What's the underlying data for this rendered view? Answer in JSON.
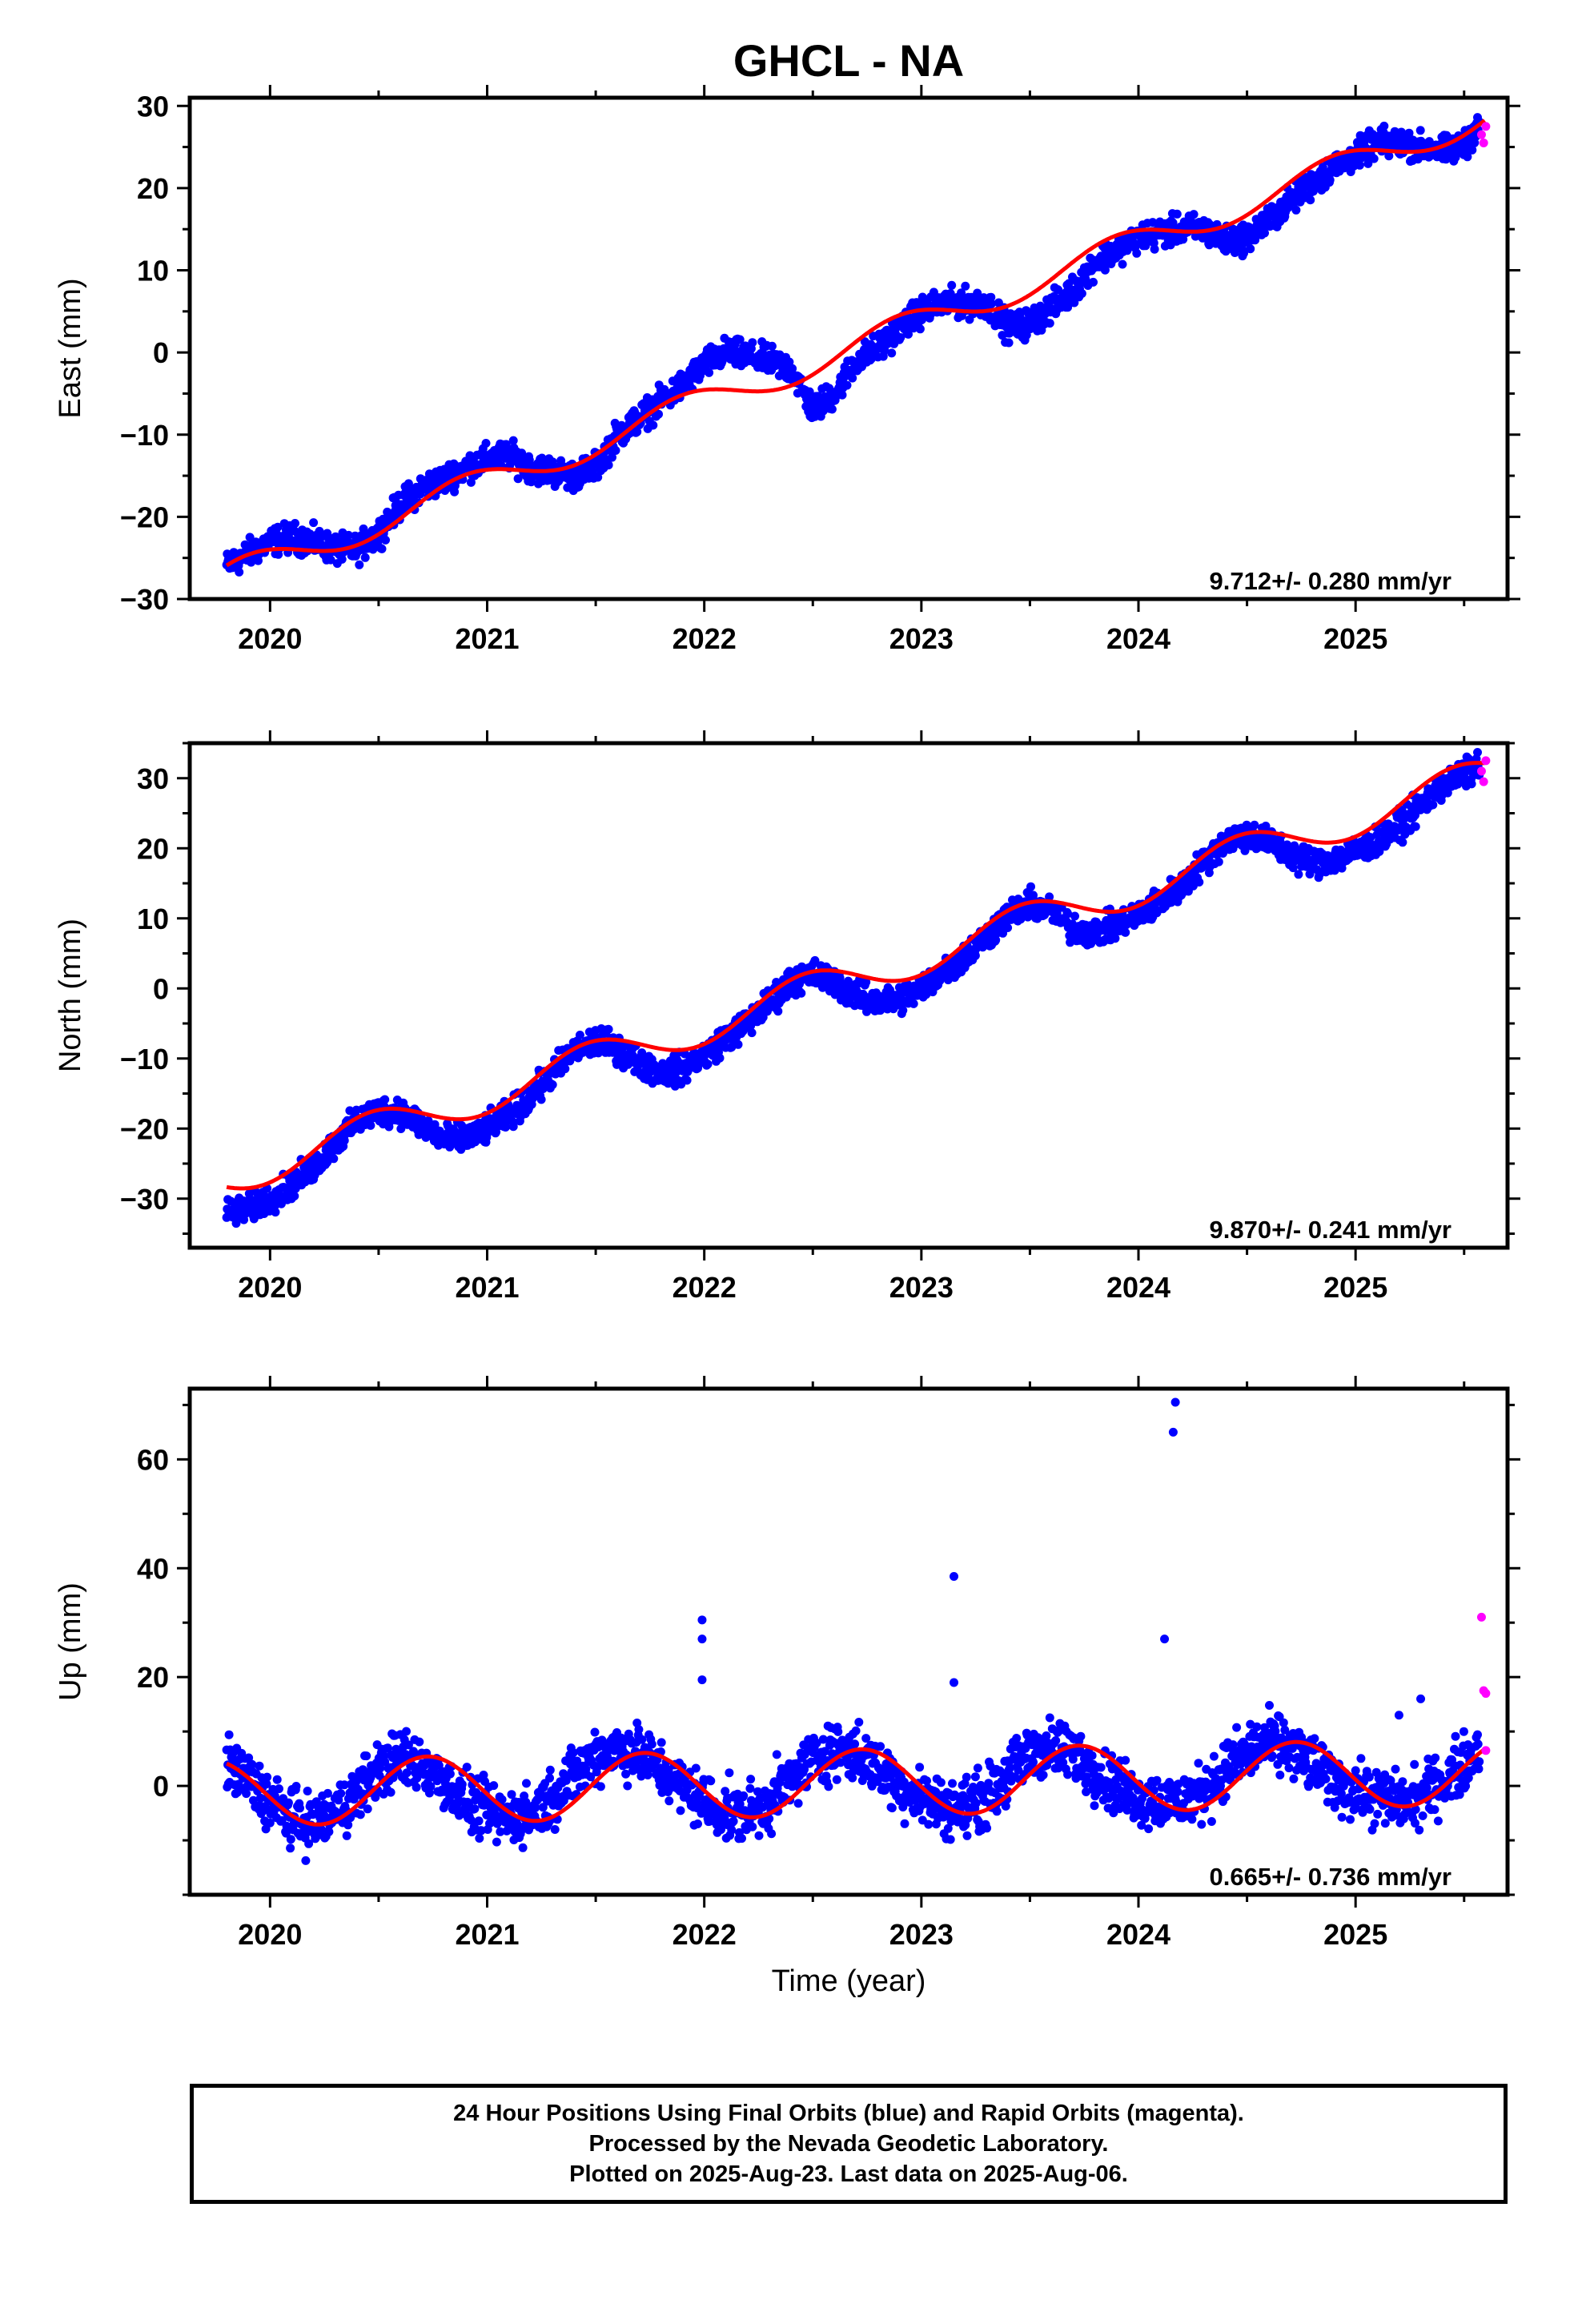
{
  "title": "GHCL - NA",
  "colors": {
    "final_orbits": "#0000ff",
    "rapid_orbits": "#ff00ff",
    "model_fit": "#ff0000",
    "frame": "#000000"
  },
  "caption": {
    "line1": "24 Hour Positions Using Final Orbits (blue) and Rapid Orbits (magenta).",
    "line2": "Processed by the Nevada Geodetic Laboratory.",
    "line3": "Plotted on 2025-Aug-23. Last data on 2025-Aug-06."
  },
  "chart_data": [
    {
      "type": "scatter",
      "component": "East",
      "ylabel": "East (mm)",
      "xlabel": "",
      "xlim": [
        2019.63,
        2025.7
      ],
      "ylim": [
        -30,
        31
      ],
      "xticks": [
        2020,
        2021,
        2022,
        2023,
        2024,
        2025
      ],
      "yticks": [
        -30,
        -20,
        -10,
        0,
        10,
        20,
        30
      ],
      "ytick_labels": [
        "−30",
        "−20",
        "−10",
        "0",
        "10",
        "20",
        "30"
      ],
      "rate_annotation": "9.712+/- 0.280 mm/yr",
      "series": [
        {
          "name": "Final Orbits",
          "color": "#0000ff",
          "marker": "dot",
          "x": [
            2019.8,
            2019.9,
            2020.0,
            2020.1,
            2020.2,
            2020.3,
            2020.4,
            2020.5,
            2020.6,
            2020.7,
            2020.8,
            2020.9,
            2021.0,
            2021.1,
            2021.2,
            2021.3,
            2021.4,
            2021.5,
            2021.6,
            2021.7,
            2021.8,
            2021.9,
            2022.0,
            2022.1,
            2022.2,
            2022.3,
            2022.4,
            2022.5,
            2022.6,
            2022.7,
            2022.8,
            2022.9,
            2023.0,
            2023.1,
            2023.2,
            2023.3,
            2023.4,
            2023.5,
            2023.6,
            2023.7,
            2023.8,
            2023.9,
            2024.0,
            2024.1,
            2024.2,
            2024.3,
            2024.4,
            2024.5,
            2024.6,
            2024.7,
            2024.8,
            2024.9,
            2025.0,
            2025.1,
            2025.2,
            2025.3,
            2025.4,
            2025.5,
            2025.57
          ],
          "y": [
            -26,
            -24.5,
            -23,
            -22.5,
            -23,
            -24,
            -24,
            -22,
            -18.5,
            -16.5,
            -15.5,
            -14,
            -13,
            -12.5,
            -14,
            -14.5,
            -15,
            -14,
            -10,
            -8,
            -6,
            -4,
            -1.5,
            0,
            -0.5,
            -1,
            -2,
            -7,
            -5,
            -1,
            0.5,
            3,
            5,
            6,
            6,
            6,
            3,
            3.5,
            5.5,
            7.5,
            11,
            12.5,
            14,
            14.5,
            15,
            15,
            13.5,
            14,
            16,
            18.5,
            20.5,
            22.5,
            24,
            25.5,
            25.5,
            25,
            24.5,
            25,
            28
          ]
        },
        {
          "name": "Rapid Orbits",
          "color": "#ff00ff",
          "marker": "dot",
          "x": [
            2025.58,
            2025.59,
            2025.6
          ],
          "y": [
            26.5,
            25.5,
            27.5
          ]
        },
        {
          "name": "Model fit",
          "color": "#ff0000",
          "marker": "line",
          "rate": 9.712,
          "offset_at_2022_5": -1.2,
          "annual_sin": -1.1,
          "annual_cos": 1.5,
          "semiannual_sin": 0.0,
          "semiannual_cos": 0.0
        }
      ]
    },
    {
      "type": "scatter",
      "component": "North",
      "ylabel": "North (mm)",
      "xlabel": "",
      "xlim": [
        2019.63,
        2025.7
      ],
      "ylim": [
        -37,
        35
      ],
      "xticks": [
        2020,
        2021,
        2022,
        2023,
        2024,
        2025
      ],
      "yticks": [
        -30,
        -20,
        -10,
        0,
        10,
        20,
        30
      ],
      "ytick_labels": [
        "−30",
        "−20",
        "−10",
        "0",
        "10",
        "20",
        "30"
      ],
      "rate_annotation": "9.870+/- 0.241 mm/yr",
      "series": [
        {
          "name": "Final Orbits",
          "color": "#0000ff",
          "marker": "dot",
          "x": [
            2019.8,
            2019.9,
            2020.0,
            2020.1,
            2020.2,
            2020.3,
            2020.4,
            2020.5,
            2020.6,
            2020.7,
            2020.8,
            2020.9,
            2021.0,
            2021.1,
            2021.2,
            2021.3,
            2021.4,
            2021.5,
            2021.6,
            2021.7,
            2021.8,
            2021.9,
            2022.0,
            2022.1,
            2022.2,
            2022.3,
            2022.4,
            2022.5,
            2022.6,
            2022.7,
            2022.8,
            2022.9,
            2023.0,
            2023.1,
            2023.2,
            2023.3,
            2023.4,
            2023.5,
            2023.6,
            2023.7,
            2023.8,
            2023.9,
            2024.0,
            2024.1,
            2024.2,
            2024.3,
            2024.4,
            2024.5,
            2024.6,
            2024.7,
            2024.8,
            2024.9,
            2025.0,
            2025.1,
            2025.2,
            2025.3,
            2025.4,
            2025.5,
            2025.57
          ],
          "y": [
            -32,
            -31.5,
            -30,
            -28,
            -25.5,
            -22,
            -19,
            -17.5,
            -17.5,
            -19.5,
            -21.5,
            -21.5,
            -20,
            -18,
            -15.5,
            -12,
            -9,
            -7.5,
            -8.5,
            -10.5,
            -12,
            -11.5,
            -9.5,
            -7,
            -5,
            -2,
            1,
            2,
            1,
            -1,
            -2,
            -1.5,
            0,
            2.5,
            4.5,
            7.5,
            10.5,
            12,
            11,
            8.5,
            8,
            9,
            10.5,
            12.5,
            14.5,
            18,
            21,
            22,
            21,
            19,
            18,
            18.5,
            19.5,
            21,
            23,
            26,
            29,
            30.5,
            32
          ]
        },
        {
          "name": "Rapid Orbits",
          "color": "#ff00ff",
          "marker": "dot",
          "x": [
            2025.58,
            2025.59,
            2025.6
          ],
          "y": [
            31,
            29.5,
            32.5
          ]
        },
        {
          "name": "Model fit",
          "color": "#ff0000",
          "marker": "line",
          "rate": 9.87,
          "offset_at_2022_5": -0.3,
          "annual_sin": 0.6,
          "annual_cos": -2.7,
          "semiannual_sin": 0.0,
          "semiannual_cos": 0.0
        }
      ]
    },
    {
      "type": "scatter",
      "component": "Up",
      "ylabel": "Up (mm)",
      "xlabel": "Time (year)",
      "xlim": [
        2019.63,
        2025.7
      ],
      "ylim": [
        -20,
        73
      ],
      "xticks": [
        2020,
        2021,
        2022,
        2023,
        2024,
        2025
      ],
      "yticks": [
        0,
        20,
        40,
        60
      ],
      "ytick_labels": [
        "0",
        "20",
        "40",
        "60"
      ],
      "rate_annotation": "0.665+/- 0.736 mm/yr",
      "series": [
        {
          "name": "Final Orbits",
          "color": "#0000ff",
          "marker": "dot",
          "x": [
            2019.8,
            2019.9,
            2020.0,
            2020.1,
            2020.2,
            2020.3,
            2020.4,
            2020.5,
            2020.6,
            2020.7,
            2020.8,
            2020.9,
            2021.0,
            2021.1,
            2021.2,
            2021.3,
            2021.4,
            2021.5,
            2021.6,
            2021.7,
            2021.8,
            2021.9,
            2022.0,
            2022.1,
            2022.2,
            2022.3,
            2022.4,
            2022.5,
            2022.6,
            2022.7,
            2022.8,
            2022.9,
            2023.0,
            2023.1,
            2023.2,
            2023.3,
            2023.4,
            2023.5,
            2023.6,
            2023.7,
            2023.8,
            2023.9,
            2024.0,
            2024.1,
            2024.2,
            2024.3,
            2024.4,
            2024.5,
            2024.6,
            2024.7,
            2024.8,
            2024.9,
            2025.0,
            2025.1,
            2025.2,
            2025.3,
            2025.4,
            2025.5,
            2025.57
          ],
          "y": [
            4,
            1,
            -3,
            -6,
            -7,
            -5,
            -1,
            3,
            5,
            4,
            1,
            -3,
            -5,
            -6,
            -5,
            -2,
            2,
            6,
            7,
            6,
            3,
            0,
            -3,
            -5,
            -5,
            -3,
            1,
            5,
            7,
            6,
            3,
            0,
            -2,
            -4,
            -4,
            -2,
            2,
            6,
            7,
            6,
            3,
            0,
            -2,
            -3,
            -3,
            -1,
            3,
            6,
            8,
            7,
            4,
            1,
            -1,
            -2,
            -3,
            -2,
            1,
            4,
            7
          ],
          "outliers_x": [
            2021.99,
            2021.99,
            2021.99,
            2023.15,
            2023.15,
            2024.12,
            2024.16,
            2024.17,
            2025.3,
            2025.2
          ],
          "outliers_y": [
            30.5,
            27,
            19.5,
            38.5,
            19,
            27,
            65,
            70.5,
            16,
            13
          ]
        },
        {
          "name": "Rapid Orbits",
          "color": "#ff00ff",
          "marker": "dot",
          "x": [
            2025.58,
            2025.59,
            2025.6,
            2025.6
          ],
          "y": [
            31,
            17.5,
            17,
            6.5
          ]
        },
        {
          "name": "Model fit",
          "color": "#ff0000",
          "marker": "line",
          "rate": 0.665,
          "offset_at_2022_5": 0.5,
          "annual_sin": -6.0,
          "annual_cos": -1.0,
          "semiannual_sin": 0.0,
          "semiannual_cos": 0.0
        }
      ]
    }
  ]
}
